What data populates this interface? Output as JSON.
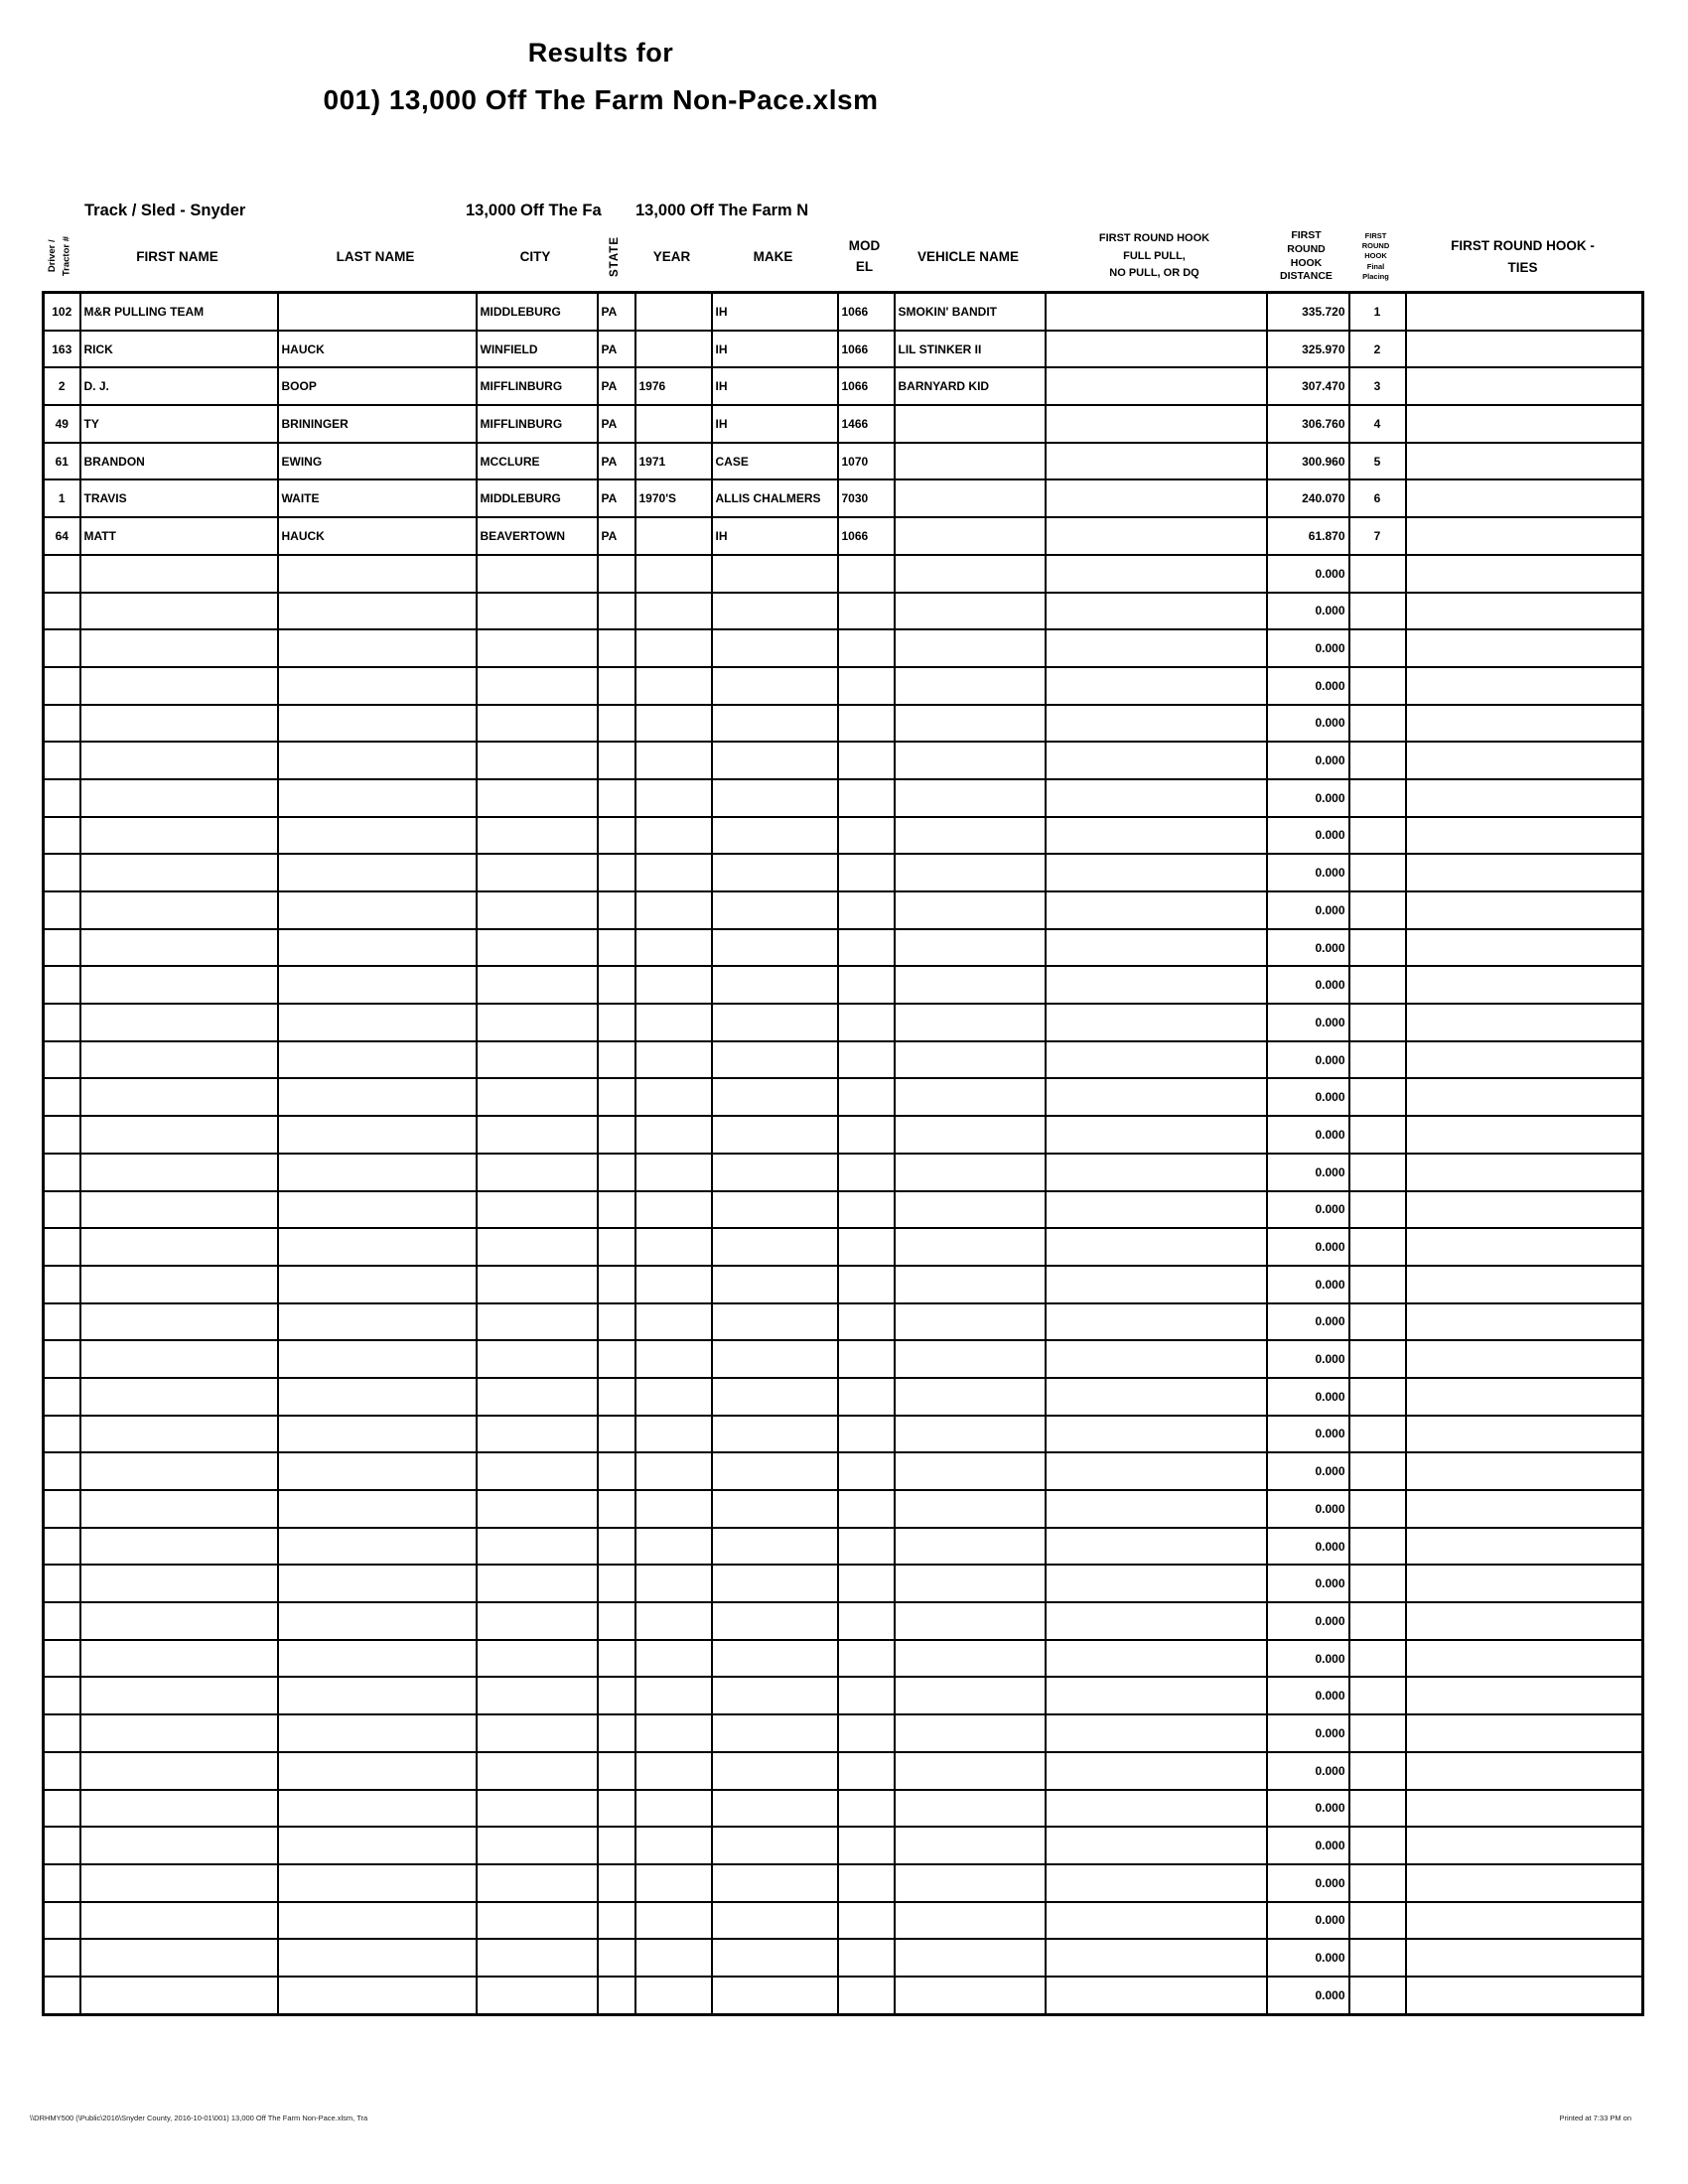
{
  "title": {
    "line1": "Results for",
    "line2": "001) 13,000 Off The Farm Non-Pace.xlsm"
  },
  "subheader": {
    "track_sled": "Track / Sled - Snyder",
    "class_left": "13,000 Off The Fa",
    "class_right": "13,000 Off The Farm N"
  },
  "columns": {
    "driver": "Driver /\nTractor #",
    "first_name": "FIRST NAME",
    "last_name": "LAST NAME",
    "city": "CITY",
    "state": "STATE",
    "year": "YEAR",
    "make": "MAKE",
    "model": "MOD\nEL",
    "vehicle": "VEHICLE NAME",
    "full_pull": "FIRST ROUND HOOK\nFULL PULL,\nNO PULL, OR DQ",
    "distance": "FIRST\nROUND\nHOOK\nDISTANCE",
    "placing": "FIRST\nROUND\nHOOK\nFinal\nPlacing",
    "ties": "FIRST ROUND HOOK -\nTIES"
  },
  "table": {
    "rows": [
      {
        "num": "102",
        "first": "M&R PULLING TEAM",
        "last": "",
        "city": "MIDDLEBURG",
        "state": "PA",
        "year": "",
        "make": "IH",
        "model": "1066",
        "vehicle": "SMOKIN' BANDIT",
        "full_pull": "",
        "distance": "335.720",
        "placing": "1",
        "ties": ""
      },
      {
        "num": "163",
        "first": "RICK",
        "last": "HAUCK",
        "city": "WINFIELD",
        "state": "PA",
        "year": "",
        "make": "IH",
        "model": "1066",
        "vehicle": "LIL STINKER II",
        "full_pull": "",
        "distance": "325.970",
        "placing": "2",
        "ties": ""
      },
      {
        "num": "2",
        "first": "D. J.",
        "last": "BOOP",
        "city": "MIFFLINBURG",
        "state": "PA",
        "year": "1976",
        "make": "IH",
        "model": "1066",
        "vehicle": "BARNYARD KID",
        "full_pull": "",
        "distance": "307.470",
        "placing": "3",
        "ties": ""
      },
      {
        "num": "49",
        "first": "TY",
        "last": "BRININGER",
        "city": "MIFFLINBURG",
        "state": "PA",
        "year": "",
        "make": "IH",
        "model": "1466",
        "vehicle": "",
        "full_pull": "",
        "distance": "306.760",
        "placing": "4",
        "ties": ""
      },
      {
        "num": "61",
        "first": "BRANDON",
        "last": "EWING",
        "city": "MCCLURE",
        "state": "PA",
        "year": "1971",
        "make": "CASE",
        "model": "1070",
        "vehicle": "",
        "full_pull": "",
        "distance": "300.960",
        "placing": "5",
        "ties": ""
      },
      {
        "num": "1",
        "first": "TRAVIS",
        "last": "WAITE",
        "city": "MIDDLEBURG",
        "state": "PA",
        "year": "1970'S",
        "make": "ALLIS CHALMERS",
        "model": "7030",
        "vehicle": "",
        "full_pull": "",
        "distance": "240.070",
        "placing": "6",
        "ties": ""
      },
      {
        "num": "64",
        "first": "MATT",
        "last": "HAUCK",
        "city": "BEAVERTOWN",
        "state": "PA",
        "year": "",
        "make": "IH",
        "model": "1066",
        "vehicle": "",
        "full_pull": "",
        "distance": "61.870",
        "placing": "7",
        "ties": ""
      }
    ],
    "empty_row_count": 39,
    "empty_row": {
      "distance": "0.000"
    }
  },
  "footer": {
    "left": "\\\\DRHMY500 (\\Public\\2016\\Snyder County, 2016-10-01\\001) 13,000 Off The Farm Non-Pace.xlsm, Tra",
    "right": "Printed at 7:33 PM on"
  }
}
